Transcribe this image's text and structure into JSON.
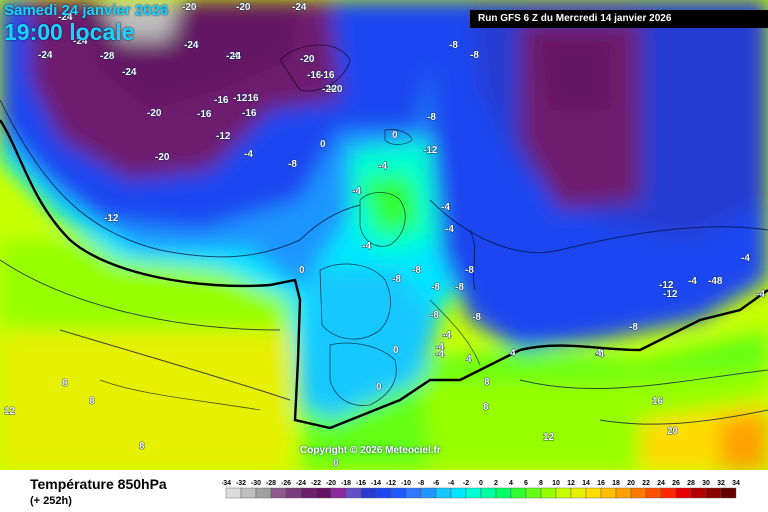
{
  "header": {
    "date_label": "Samedi 24 janvier 2026",
    "time_label": "19:00 locale",
    "run_label": "Run GFS 6 Z du Mercredi 14 janvier 2026"
  },
  "map": {
    "copyright": "Copyright © 2026 Meteociel.fr",
    "labels": [
      "-24",
      "-20",
      "-24",
      "-24",
      "-28",
      "-24",
      "-20",
      "-24",
      "-24",
      "-20",
      "-20",
      "-12",
      "-20",
      "-16",
      "-1216",
      "-16",
      "-12",
      "-4",
      "-20",
      "-16",
      "-8",
      "-16",
      "-20",
      "-16",
      "-20",
      "-4",
      "-8",
      "-8",
      "-12",
      "-8",
      "0",
      "0",
      "0",
      "-4",
      "-4",
      "-4",
      "-4",
      "-4",
      "-8",
      "-8",
      "-8",
      "-8",
      "-8",
      "-8",
      "-8",
      "-12",
      "-12",
      "-4",
      "-48",
      "-4",
      "-4",
      "-8",
      "-4",
      "-4",
      "-4",
      "-4",
      "0",
      "0",
      "0",
      "4",
      "4",
      "4",
      "8",
      "8",
      "8",
      "8",
      "8",
      "12",
      "12",
      "16",
      "20"
    ],
    "colors": {
      "ocean_warm": "#c8ff00",
      "light_blue": "#33d6ff",
      "blue": "#1f4fff",
      "purple": "#6a1a8a",
      "green": "#66ff33",
      "orange": "#ffaa00"
    }
  },
  "footer": {
    "field_title": "Température 850hPa",
    "lead_time": "(+ 252h)"
  },
  "legend": {
    "ticks": [
      "-34",
      "-32",
      "-30",
      "-28",
      "-26",
      "-24",
      "-22",
      "-20",
      "-18",
      "-16",
      "-14",
      "-12",
      "-10",
      "-8",
      "-6",
      "-4",
      "-2",
      "0",
      "2",
      "4",
      "6",
      "8",
      "10",
      "12",
      "14",
      "16",
      "18",
      "20",
      "22",
      "24",
      "26",
      "28",
      "30",
      "32",
      "34"
    ],
    "colors": [
      "#dcdcdc",
      "#bebebe",
      "#a0a0a0",
      "#8c5a8c",
      "#7a3c7a",
      "#6e1e6e",
      "#641464",
      "#8c28a0",
      "#6450c8",
      "#283cd2",
      "#1e46f0",
      "#1e5aff",
      "#3278ff",
      "#1e96ff",
      "#14c8ff",
      "#00e6ff",
      "#00ffd2",
      "#00ffa0",
      "#00ff64",
      "#32ff32",
      "#64ff14",
      "#96ff00",
      "#c8ff00",
      "#e6f000",
      "#ffdc00",
      "#ffbe00",
      "#ffa000",
      "#ff7800",
      "#ff5000",
      "#ff2800",
      "#e60000",
      "#b40000",
      "#8c0000",
      "#640000"
    ]
  }
}
